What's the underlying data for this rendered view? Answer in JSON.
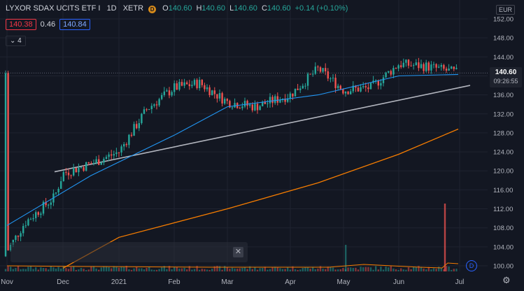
{
  "header": {
    "symbol": "LYXOR SDAX UCITS ETF I",
    "interval": "1D",
    "exchange": "XETR",
    "badge": "D",
    "ohlc": [
      {
        "k": "O",
        "v": "140.60"
      },
      {
        "k": "H",
        "v": "140.60"
      },
      {
        "k": "L",
        "v": "140.60"
      },
      {
        "k": "C",
        "v": "140.60"
      }
    ],
    "change": "+0.14 (+0.10%)"
  },
  "quote": {
    "bid": "140.38",
    "spread": "0.46",
    "ask": "140.84"
  },
  "indicators_toggle": "4",
  "currency": "EUR",
  "last_price": {
    "price": "140.60",
    "countdown": "09:26:55"
  },
  "bottom": {
    "dividend_badge": "D",
    "close_icon": "close-icon",
    "settings_icon": "gear-icon"
  },
  "colors": {
    "background": "#131722",
    "up": "#26a69a",
    "down": "#ef5350",
    "ma_short": "#2196f3",
    "ma_long": "#f57c00",
    "trendline": "#b2b5be",
    "grid": "#1f2330"
  },
  "chart_data": {
    "type": "candlestick",
    "y_ticks": [
      "152.00",
      "148.00",
      "144.00",
      "140.00",
      "136.00",
      "132.00",
      "128.00",
      "124.00",
      "120.00",
      "116.00",
      "112.00",
      "108.00",
      "104.00",
      "100.00"
    ],
    "ylim": [
      99,
      153.5
    ],
    "x_ticks": [
      "Nov",
      "Dec",
      "2021",
      "Feb",
      "Mar",
      "Apr",
      "May",
      "Jun",
      "Jul"
    ],
    "close_anchors": [
      [
        "Nov",
        103.0
      ],
      [
        "Nov 10",
        109.0
      ],
      [
        "Nov 20",
        114.5
      ],
      [
        "Dec",
        119.5
      ],
      [
        "Dec 15",
        121.5
      ],
      [
        "2021",
        124.0
      ],
      [
        "Jan 15",
        133.0
      ],
      [
        "Feb",
        137.5
      ],
      [
        "Feb 15",
        138.5
      ],
      [
        "Mar",
        134.5
      ],
      [
        "Mar 15",
        133.5
      ],
      [
        "Apr",
        136.0
      ],
      [
        "Apr 15",
        141.5
      ],
      [
        "May",
        137.0
      ],
      [
        "May 15",
        137.5
      ],
      [
        "Jun",
        142.5
      ],
      [
        "Jun 15",
        142.0
      ],
      [
        "Jul",
        140.6
      ]
    ],
    "ma_short": [
      [
        108.5,
        "Nov"
      ],
      [
        119.0,
        "Dec 15"
      ],
      [
        127.5,
        "Feb"
      ],
      [
        133.5,
        "Mar"
      ],
      [
        136.0,
        "Apr 15"
      ],
      [
        140.0,
        "Jun"
      ],
      [
        140.3,
        "Jul"
      ]
    ],
    "ma_long": [
      [
        99.5,
        "Dec"
      ],
      [
        106.0,
        "2021"
      ],
      [
        112.0,
        "Mar"
      ],
      [
        117.5,
        "Apr 15"
      ],
      [
        123.5,
        "Jun"
      ],
      [
        128.8,
        "Jul"
      ]
    ],
    "trendline": [
      [
        119.8,
        "Nov 20"
      ],
      [
        138.0,
        "Jul"
      ]
    ],
    "volume_spike": "Jun 25"
  }
}
